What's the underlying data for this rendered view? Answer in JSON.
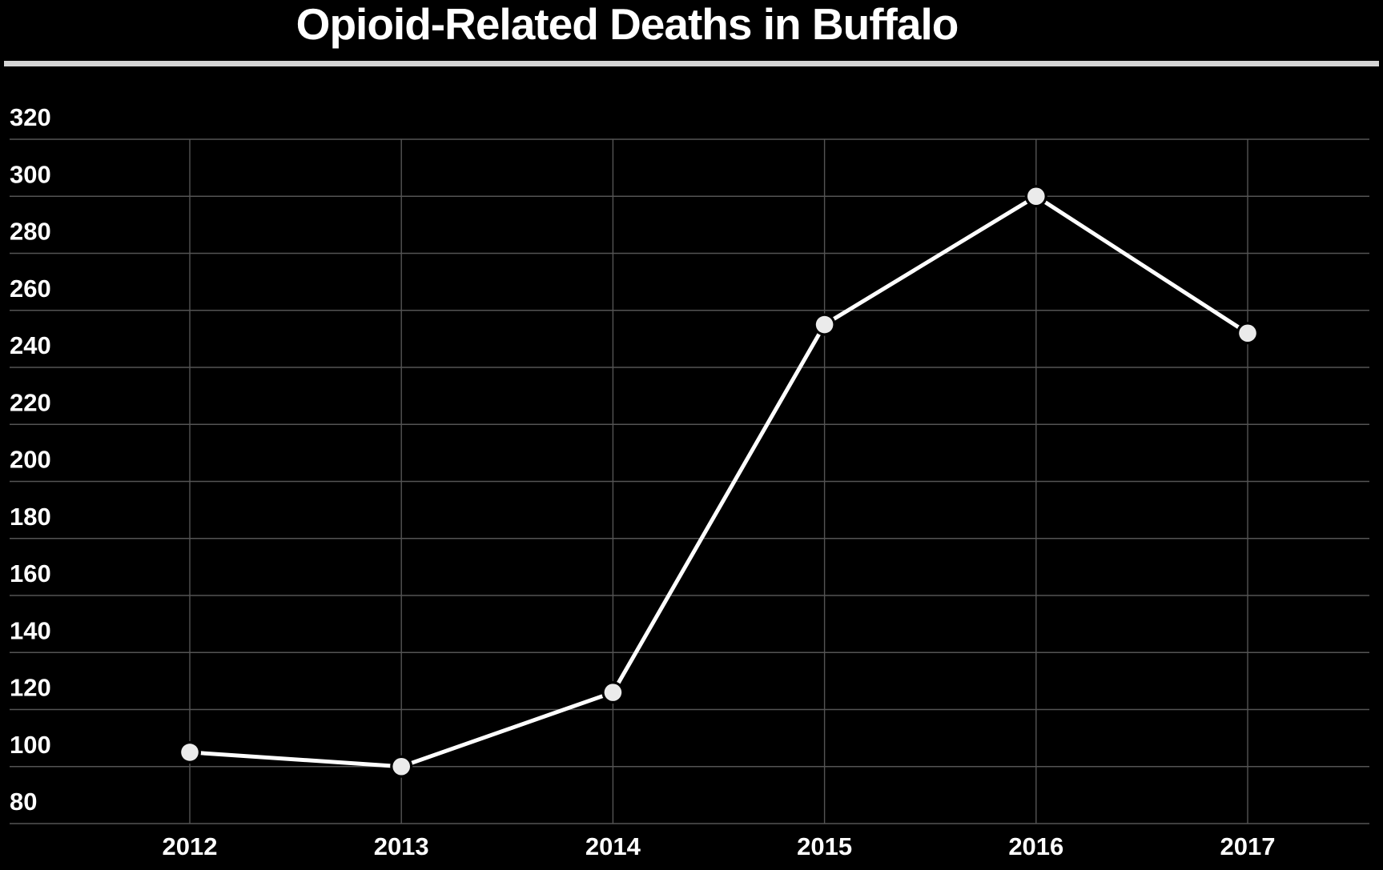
{
  "title": "Opioid-Related Deaths in Buffalo",
  "chart_data": {
    "type": "line",
    "title": "Opioid-Related Deaths in Buffalo",
    "series_name": "Opioid-related deaths",
    "categories": [
      "2012",
      "2013",
      "2014",
      "2015",
      "2016",
      "2017"
    ],
    "values": [
      105,
      100,
      126,
      255,
      300,
      252
    ],
    "xlabel": "",
    "ylabel": "",
    "ylim": [
      80,
      320
    ],
    "y_ticks": [
      320,
      300,
      280,
      260,
      240,
      220,
      200,
      180,
      160,
      140,
      120,
      100,
      80
    ],
    "grid": true,
    "legend_position": "none",
    "marker": "circle"
  },
  "colors": {
    "background": "#000000",
    "title_text": "#ffffff",
    "divider": "#d5d5d5",
    "gridline": "#545454",
    "tick_text": "#ffffff",
    "line": "#ffffff",
    "marker_fill": "#ebebeb",
    "marker_halo": "#000000"
  }
}
